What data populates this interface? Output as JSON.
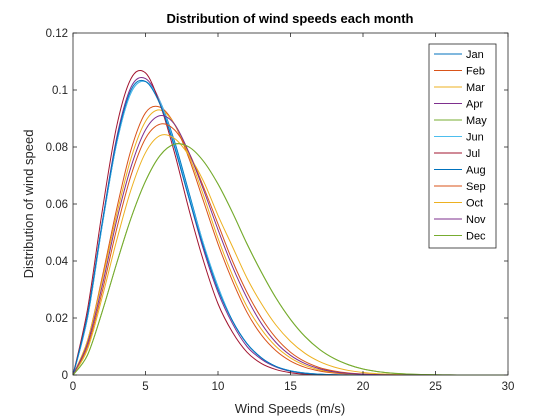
{
  "chart_data": {
    "type": "line",
    "title": "Distribution of wind speeds each month",
    "xlabel": "Wind Speeds (m/s)",
    "ylabel": "Distribution of wind speed",
    "xlim": [
      0,
      30
    ],
    "ylim": [
      0,
      0.12
    ],
    "x_ticks": [
      "0",
      "5",
      "10",
      "15",
      "20",
      "25",
      "30"
    ],
    "y_ticks": [
      "0",
      "0.02",
      "0.04",
      "0.06",
      "0.08",
      "0.1",
      "0.12"
    ],
    "grid": false,
    "legend_position": "top-right",
    "x": [
      0,
      1,
      2,
      3,
      4,
      5,
      6,
      7,
      8,
      9,
      10,
      11,
      12,
      13,
      14,
      15,
      16,
      17,
      18,
      19,
      20,
      21,
      22,
      23,
      24,
      25,
      26,
      27,
      28,
      29,
      30
    ],
    "series": [
      {
        "name": "Jan",
        "color": "#0072BD",
        "values": [
          0,
          0.02,
          0.052,
          0.081,
          0.099,
          0.103,
          0.096,
          0.082,
          0.064,
          0.046,
          0.031,
          0.019,
          0.011,
          0.006,
          0.003,
          0.0015,
          0.0007,
          0.0003,
          0.0001,
          5e-05,
          0,
          0,
          0,
          0,
          0,
          0,
          0,
          0,
          0,
          0,
          0
        ]
      },
      {
        "name": "Feb",
        "color": "#D95319",
        "values": [
          0,
          0.012,
          0.034,
          0.058,
          0.079,
          0.092,
          0.094,
          0.088,
          0.076,
          0.061,
          0.046,
          0.033,
          0.022,
          0.014,
          0.0085,
          0.0049,
          0.0027,
          0.0014,
          0.0007,
          0.0003,
          0.00015,
          6e-05,
          0,
          0,
          0,
          0,
          0,
          0,
          0,
          0,
          0
        ]
      },
      {
        "name": "Mar",
        "color": "#EDB120",
        "values": [
          0,
          0.012,
          0.033,
          0.056,
          0.076,
          0.089,
          0.093,
          0.088,
          0.077,
          0.063,
          0.048,
          0.035,
          0.024,
          0.016,
          0.01,
          0.006,
          0.0034,
          0.0018,
          0.0009,
          0.00045,
          0.0002,
          0.0001,
          0,
          0,
          0,
          0,
          0,
          0,
          0,
          0,
          0
        ]
      },
      {
        "name": "Apr",
        "color": "#7E2F8E",
        "values": [
          0,
          0.021,
          0.053,
          0.083,
          0.101,
          0.104,
          0.096,
          0.08,
          0.062,
          0.044,
          0.029,
          0.018,
          0.01,
          0.0055,
          0.0028,
          0.0013,
          0.0006,
          0.00025,
          0.0001,
          0,
          0,
          0,
          0,
          0,
          0,
          0,
          0,
          0,
          0,
          0,
          0
        ]
      },
      {
        "name": "May",
        "color": "#77AC30",
        "values": [
          0,
          0.007,
          0.022,
          0.039,
          0.055,
          0.068,
          0.077,
          0.081,
          0.08,
          0.075,
          0.067,
          0.057,
          0.046,
          0.036,
          0.027,
          0.0195,
          0.0135,
          0.009,
          0.0058,
          0.0036,
          0.0021,
          0.0012,
          0.00065,
          0.00034,
          0.00017,
          8e-05,
          4e-05,
          0,
          0,
          0,
          0
        ]
      },
      {
        "name": "Jun",
        "color": "#4DBEEE",
        "values": [
          0,
          0.02,
          0.052,
          0.081,
          0.099,
          0.103,
          0.096,
          0.081,
          0.063,
          0.046,
          0.031,
          0.019,
          0.011,
          0.006,
          0.003,
          0.0015,
          0.0007,
          0.0003,
          0.0001,
          5e-05,
          0,
          0,
          0,
          0,
          0,
          0,
          0,
          0,
          0,
          0,
          0
        ]
      },
      {
        "name": "Jul",
        "color": "#A2142F",
        "values": [
          0,
          0.023,
          0.057,
          0.087,
          0.104,
          0.106,
          0.095,
          0.078,
          0.058,
          0.04,
          0.025,
          0.015,
          0.008,
          0.004,
          0.0019,
          0.0008,
          0.0003,
          0.0001,
          0,
          0,
          0,
          0,
          0,
          0,
          0,
          0,
          0,
          0,
          0,
          0,
          0
        ]
      },
      {
        "name": "Aug",
        "color": "#0072BD",
        "values": [
          0,
          0.021,
          0.053,
          0.082,
          0.1,
          0.103,
          0.095,
          0.08,
          0.062,
          0.045,
          0.03,
          0.019,
          0.011,
          0.006,
          0.003,
          0.0014,
          0.0006,
          0.00025,
          0.0001,
          0,
          0,
          0,
          0,
          0,
          0,
          0,
          0,
          0,
          0,
          0,
          0
        ]
      },
      {
        "name": "Sep",
        "color": "#D95319",
        "values": [
          0,
          0.01,
          0.029,
          0.051,
          0.07,
          0.083,
          0.088,
          0.086,
          0.078,
          0.066,
          0.053,
          0.04,
          0.029,
          0.02,
          0.013,
          0.008,
          0.0047,
          0.0026,
          0.0014,
          0.0007,
          0.00035,
          0.00016,
          7e-05,
          0,
          0,
          0,
          0,
          0,
          0,
          0,
          0
        ]
      },
      {
        "name": "Oct",
        "color": "#EDB120",
        "values": [
          0,
          0.009,
          0.027,
          0.047,
          0.065,
          0.078,
          0.084,
          0.083,
          0.077,
          0.068,
          0.056,
          0.045,
          0.034,
          0.025,
          0.0175,
          0.0118,
          0.0076,
          0.0047,
          0.0028,
          0.0016,
          0.00088,
          0.00046,
          0.00023,
          0.00011,
          5e-05,
          0,
          0,
          0,
          0,
          0,
          0
        ]
      },
      {
        "name": "Nov",
        "color": "#7E2F8E",
        "values": [
          0,
          0.011,
          0.031,
          0.054,
          0.073,
          0.086,
          0.091,
          0.088,
          0.078,
          0.065,
          0.051,
          0.038,
          0.027,
          0.018,
          0.0114,
          0.0069,
          0.004,
          0.0022,
          0.0011,
          0.00055,
          0.00026,
          0.00012,
          5e-05,
          0,
          0,
          0,
          0,
          0,
          0,
          0,
          0
        ]
      },
      {
        "name": "Dec",
        "color": "#77AC30",
        "values": [
          0,
          0.007,
          0.022,
          0.039,
          0.055,
          0.068,
          0.077,
          0.081,
          0.08,
          0.075,
          0.067,
          0.057,
          0.046,
          0.036,
          0.027,
          0.0195,
          0.0135,
          0.009,
          0.0058,
          0.0036,
          0.0021,
          0.0012,
          0.00065,
          0.00034,
          0.00017,
          8e-05,
          4e-05,
          0,
          0,
          0,
          0
        ]
      }
    ]
  }
}
